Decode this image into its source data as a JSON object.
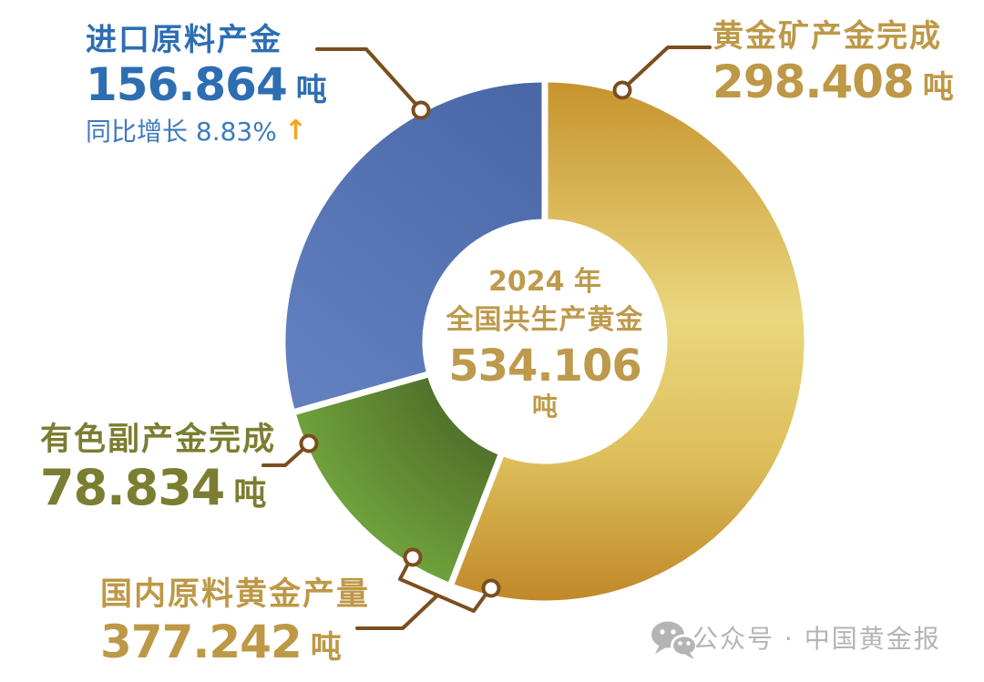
{
  "chart_data": {
    "type": "pie",
    "subtype": "donut",
    "title": "2024 年全国共生产黄金 534.106 吨",
    "unit": "吨",
    "total_value": 534.106,
    "direction": "clockwise",
    "start_angle_deg": 0,
    "center_label": {
      "line1": "2024 年",
      "line2": "全国共生产黄金",
      "value": "534.106",
      "unit": "吨"
    },
    "segments": [
      {
        "id": "gold-mine",
        "name": "黄金矿产金完成",
        "value": 298.408,
        "display_value": "298.408",
        "unit": "吨",
        "text_color": "#bd9846",
        "gradient": [
          {
            "offset": 0,
            "color": "#c6932c"
          },
          {
            "offset": 0.45,
            "color": "#ead77f"
          },
          {
            "offset": 0.72,
            "color": "#ddbf5c"
          },
          {
            "offset": 1,
            "color": "#c08727"
          }
        ]
      },
      {
        "id": "nonferrous-byproduct",
        "name": "有色副产金完成",
        "value": 78.834,
        "display_value": "78.834",
        "unit": "吨",
        "text_color": "#7b7d31",
        "gradient": [
          {
            "offset": 0.44,
            "color": "#50702a"
          },
          {
            "offset": 1,
            "color": "#70a23c"
          }
        ]
      },
      {
        "id": "imported-material",
        "name": "进口原料产金",
        "value": 156.864,
        "display_value": "156.864",
        "unit": "吨",
        "text_color": "#2d6eb3",
        "yoy_text": "同比增长 8.83%",
        "yoy_arrow": "↑",
        "gradient": [
          {
            "offset": 0,
            "color": "#4a68a8"
          },
          {
            "offset": 1,
            "color": "#6280bf"
          }
        ]
      }
    ],
    "bracket_annotation": {
      "name": "国内原料黄金产量",
      "value": 377.242,
      "display_value": "377.242",
      "unit": "吨"
    }
  },
  "watermark": {
    "text": "公众号 · 中国黄金报"
  },
  "colors": {
    "background": "#ffffff",
    "callout_line": "#7a4e1e",
    "yoy_arrow_orange": "#f7a41f",
    "watermark_gray": "#b4b4b4",
    "center_text_gold": "#bd9a4c"
  }
}
